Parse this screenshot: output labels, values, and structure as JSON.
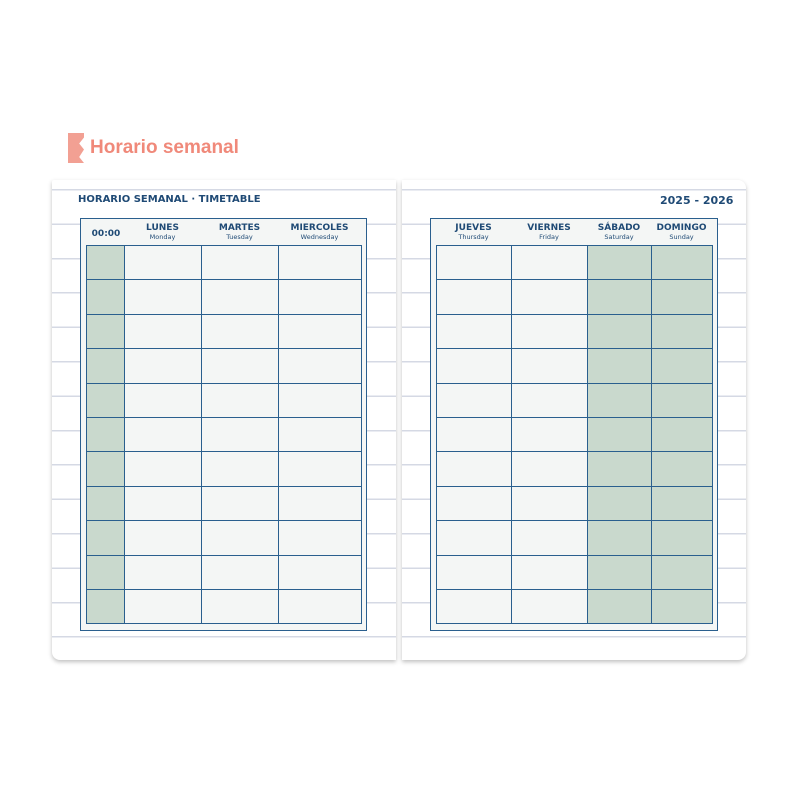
{
  "section_title": "Horario semanal",
  "header": {
    "left": "HORARIO SEMANAL · TIMETABLE",
    "right": "2025 - 2026"
  },
  "time_label": "00:00",
  "rows": 11,
  "left_days": [
    {
      "es": "LUNES",
      "en": "Monday"
    },
    {
      "es": "MARTES",
      "en": "Tuesday"
    },
    {
      "es": "MIERCOLES",
      "en": "Wednesday"
    }
  ],
  "right_days": [
    {
      "es": "JUEVES",
      "en": "Thursday"
    },
    {
      "es": "VIERNES",
      "en": "Friday"
    },
    {
      "es": "SÁBADO",
      "en": "Saturday"
    },
    {
      "es": "DOMINGO",
      "en": "Sunday"
    }
  ],
  "colors": {
    "accent": "#f2a093",
    "navy": "#1f4a75",
    "weekend_fill": "#c9d9cd"
  }
}
